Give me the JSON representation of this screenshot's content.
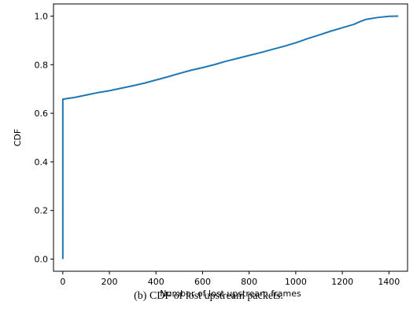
{
  "caption": "(b) CDF of lost upstream packets.",
  "chart_data": {
    "type": "line",
    "title": "",
    "xlabel": "Number of lost upstream frames",
    "ylabel": "CDF",
    "xlim": [
      -40,
      1480
    ],
    "ylim": [
      -0.05,
      1.05
    ],
    "xticks": [
      0,
      200,
      400,
      600,
      800,
      1000,
      1200,
      1400
    ],
    "yticks": [
      0.0,
      0.2,
      0.4,
      0.6,
      0.8,
      1.0
    ],
    "xtick_labels": [
      "0",
      "200",
      "400",
      "600",
      "800",
      "1000",
      "1200",
      "1400"
    ],
    "ytick_labels": [
      "0.0",
      "0.2",
      "0.4",
      "0.6",
      "0.8",
      "1.0"
    ],
    "grid": false,
    "line_color": "#1f77b4",
    "series": [
      {
        "x": [
          0,
          0,
          20,
          50,
          100,
          150,
          200,
          250,
          300,
          350,
          400,
          450,
          500,
          550,
          600,
          650,
          700,
          750,
          800,
          850,
          900,
          950,
          1000,
          1050,
          1100,
          1150,
          1200,
          1250,
          1270,
          1300,
          1350,
          1400,
          1440
        ],
        "y": [
          0.0,
          0.658,
          0.661,
          0.665,
          0.675,
          0.685,
          0.693,
          0.703,
          0.713,
          0.724,
          0.737,
          0.75,
          0.764,
          0.777,
          0.788,
          0.8,
          0.814,
          0.826,
          0.838,
          0.85,
          0.863,
          0.876,
          0.89,
          0.907,
          0.922,
          0.938,
          0.952,
          0.966,
          0.975,
          0.986,
          0.994,
          0.999,
          1.0
        ]
      }
    ]
  }
}
